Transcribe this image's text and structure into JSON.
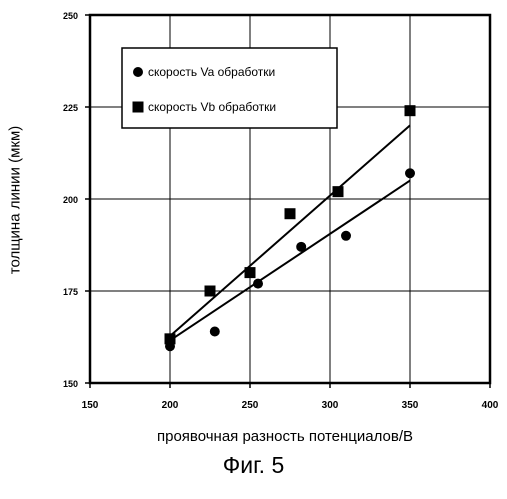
{
  "chart_data": {
    "type": "scatter",
    "xlabel": "проявочная разность потенциалов/В",
    "ylabel": "толщина линии (мкм)",
    "caption": "Фиг. 5",
    "xlim": [
      150,
      400
    ],
    "ylim": [
      150,
      250
    ],
    "x_ticks": [
      "150",
      "200",
      "250",
      "300",
      "350",
      "400"
    ],
    "y_ticks": [
      "150",
      "175",
      "200",
      "225",
      "250"
    ],
    "grid": true,
    "legend_position": "top-left",
    "series": [
      {
        "name": "скорость Va обработки",
        "marker": "circle",
        "points": [
          [
            200,
            160
          ],
          [
            228,
            164
          ],
          [
            255,
            177
          ],
          [
            282,
            187
          ],
          [
            310,
            190
          ],
          [
            350,
            207
          ]
        ],
        "trendline": [
          [
            198,
            161
          ],
          [
            350,
            205
          ]
        ]
      },
      {
        "name": "скорость Vb обработки",
        "marker": "square",
        "points": [
          [
            200,
            162
          ],
          [
            225,
            175
          ],
          [
            250,
            180
          ],
          [
            275,
            196
          ],
          [
            305,
            202
          ],
          [
            350,
            224
          ]
        ],
        "trendline": [
          [
            198,
            162
          ],
          [
            350,
            220
          ]
        ]
      }
    ]
  }
}
